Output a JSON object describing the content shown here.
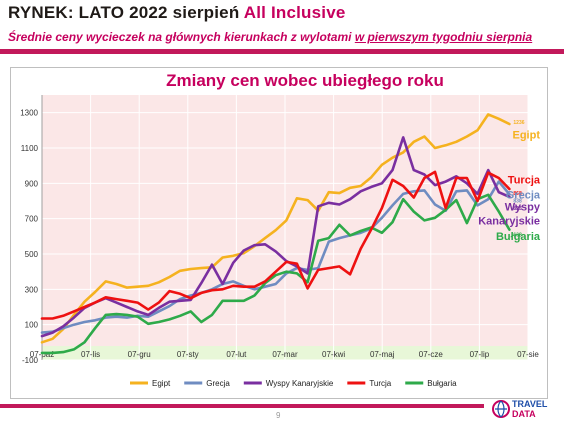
{
  "header": {
    "title_prefix": "RYNEK: LATO 2022 sierpień ",
    "title_accent": "All Inclusive",
    "subtitle_part1": "Średnie ceny wycieczek na głównych kierunkach z wylotami ",
    "subtitle_part2": "w pierwszym tygodniu sierpnia"
  },
  "footer": {
    "page_number": "9",
    "logo_text_1": "TRAVEL",
    "logo_text_2": "DATA"
  },
  "colors": {
    "egipt": "#f5b21f",
    "grecja": "#6f8cc1",
    "wyspy": "#7a2fa0",
    "turcja": "#ee1111",
    "bulgaria": "#2eaa4a",
    "plot_bg": "#fbe7e7",
    "accent": "#c6005e"
  },
  "chart_data": {
    "type": "line",
    "title": "Zmiany cen wobec ubiegłego roku",
    "xlabel": "",
    "ylabel": "",
    "ylim": [
      -100,
      1400
    ],
    "yticks": [
      "-100",
      "100",
      "300",
      "500",
      "700",
      "900",
      "1100",
      "1300"
    ],
    "xticks": [
      "07-paź",
      "07-lis",
      "07-gru",
      "07-sty",
      "07-lut",
      "07-mar",
      "07-kwi",
      "07-maj",
      "07-cze",
      "07-lip",
      "07-sie"
    ],
    "grid": true,
    "legend": "bottom",
    "series": [
      {
        "name": "Egipt",
        "key": "egipt",
        "end_label": "1236",
        "side_label": "Egipt",
        "values": [
          0,
          20,
          75,
          155,
          230,
          285,
          345,
          330,
          310,
          315,
          320,
          340,
          370,
          405,
          415,
          420,
          425,
          480,
          490,
          505,
          545,
          590,
          635,
          690,
          815,
          805,
          745,
          850,
          845,
          875,
          885,
          935,
          1005,
          1045,
          1075,
          1135,
          1165,
          1100,
          1115,
          1135,
          1165,
          1200,
          1290,
          1265,
          1236
        ]
      },
      {
        "name": "Grecja",
        "key": "grecja",
        "end_label": "838",
        "side_label": "Grecja",
        "values": [
          55,
          60,
          80,
          100,
          115,
          125,
          140,
          145,
          140,
          150,
          145,
          175,
          205,
          245,
          265,
          280,
          300,
          330,
          345,
          320,
          300,
          315,
          330,
          390,
          420,
          410,
          420,
          570,
          590,
          605,
          620,
          645,
          705,
          775,
          840,
          855,
          860,
          780,
          745,
          855,
          860,
          775,
          810,
          910,
          838
        ]
      },
      {
        "name": "Wyspy Kanaryjskie",
        "key": "wyspy",
        "end_label": "823",
        "side_label_1": "Wyspy",
        "side_label_2": "Kanaryjskie",
        "values": [
          35,
          55,
          90,
          140,
          195,
          225,
          250,
          225,
          200,
          175,
          155,
          195,
          230,
          235,
          240,
          335,
          440,
          330,
          450,
          520,
          550,
          555,
          515,
          460,
          430,
          390,
          770,
          790,
          780,
          810,
          855,
          880,
          900,
          975,
          1160,
          975,
          950,
          890,
          910,
          940,
          900,
          840,
          975,
          850,
          823
        ]
      },
      {
        "name": "Turcja",
        "key": "turcja",
        "end_label": "868",
        "side_label": "Turcja",
        "values": [
          135,
          135,
          150,
          175,
          200,
          225,
          255,
          245,
          235,
          225,
          185,
          225,
          290,
          275,
          250,
          280,
          295,
          300,
          320,
          315,
          315,
          345,
          400,
          455,
          445,
          305,
          410,
          420,
          430,
          385,
          530,
          640,
          760,
          920,
          885,
          820,
          930,
          965,
          760,
          930,
          930,
          800,
          960,
          930,
          868
        ]
      },
      {
        "name": "Bułgaria",
        "key": "bulgaria",
        "end_label": "638",
        "side_label": "Bułgaria",
        "values": [
          -60,
          -60,
          -55,
          -40,
          0,
          80,
          155,
          160,
          155,
          145,
          105,
          115,
          130,
          150,
          175,
          115,
          155,
          235,
          235,
          235,
          265,
          335,
          380,
          400,
          390,
          340,
          575,
          590,
          665,
          605,
          630,
          650,
          620,
          680,
          810,
          740,
          690,
          705,
          750,
          805,
          675,
          810,
          835,
          740,
          638
        ]
      }
    ]
  }
}
